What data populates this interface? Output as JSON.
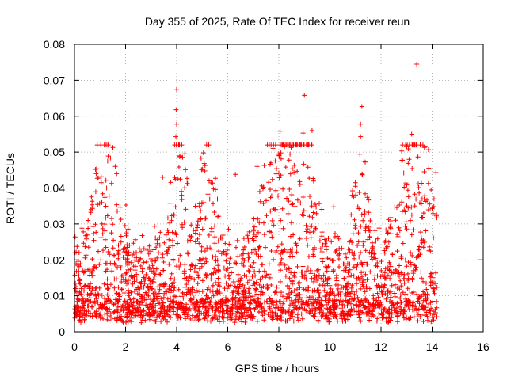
{
  "chart_data": {
    "type": "scatter",
    "title": "Day 355 of 2025, Rate Of TEC Index for receiver reun",
    "xlabel": "GPS time / hours",
    "ylabel": "ROTI / TECUs",
    "xlim": [
      0,
      16
    ],
    "ylim": [
      0,
      0.08
    ],
    "x_ticks": [
      0,
      2,
      4,
      6,
      8,
      10,
      12,
      14,
      16
    ],
    "x_tick_labels": [
      "0",
      "2",
      "4",
      "6",
      "8",
      "10",
      "12",
      "14",
      "16"
    ],
    "y_ticks": [
      0,
      0.01,
      0.02,
      0.03,
      0.04,
      0.05,
      0.06,
      0.07,
      0.08
    ],
    "y_tick_labels": [
      "0",
      "0.01",
      "0.02",
      "0.03",
      "0.04",
      "0.05",
      "0.06",
      "0.07",
      "0.08"
    ],
    "grid": true,
    "marker": "+",
    "marker_color": "#ff0000",
    "series": [
      {
        "name": "ROTI",
        "color": "#ff0000",
        "notable_points": [
          {
            "x": 0.85,
            "y": 0.044
          },
          {
            "x": 1.6,
            "y": 0.046
          },
          {
            "x": 1.65,
            "y": 0.044
          },
          {
            "x": 3.45,
            "y": 0.043
          },
          {
            "x": 4.0,
            "y": 0.0675
          },
          {
            "x": 3.98,
            "y": 0.0618
          },
          {
            "x": 4.0,
            "y": 0.0578
          },
          {
            "x": 3.97,
            "y": 0.0543
          },
          {
            "x": 6.3,
            "y": 0.0438
          },
          {
            "x": 7.15,
            "y": 0.046
          },
          {
            "x": 8.05,
            "y": 0.0558
          },
          {
            "x": 8.6,
            "y": 0.0463
          },
          {
            "x": 8.95,
            "y": 0.0553
          },
          {
            "x": 9.0,
            "y": 0.0658
          },
          {
            "x": 9.3,
            "y": 0.056
          },
          {
            "x": 11.2,
            "y": 0.0578
          },
          {
            "x": 11.25,
            "y": 0.0627
          },
          {
            "x": 11.2,
            "y": 0.0543
          },
          {
            "x": 11.15,
            "y": 0.0388
          },
          {
            "x": 13.2,
            "y": 0.055
          },
          {
            "x": 13.1,
            "y": 0.048
          },
          {
            "x": 13.4,
            "y": 0.0745
          },
          {
            "x": 13.7,
            "y": 0.0513
          },
          {
            "x": 14.15,
            "y": 0.0443
          }
        ]
      }
    ]
  }
}
